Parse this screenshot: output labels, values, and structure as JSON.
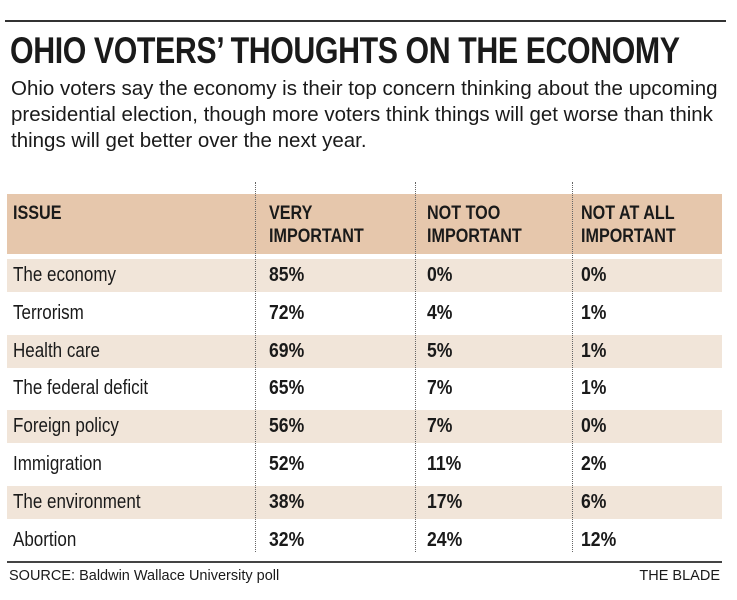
{
  "title": "OHIO VOTERS’ THOUGHTS ON THE ECONOMY",
  "subtitle": "Ohio voters say the economy is their top concern thinking about the upcoming presidential election, though more voters think things will get worse than think things will get better over the next year.",
  "source": "SOURCE: Baldwin Wallace University poll",
  "credit": "THE BLADE",
  "colors": {
    "header_bg": "#e6c7ac",
    "band_bg": "#f1e5d9",
    "text": "#1a1a1a"
  },
  "chart_data": {
    "type": "table",
    "title": "OHIO VOTERS’ THOUGHTS ON THE ECONOMY",
    "columns": [
      "ISSUE",
      "VERY IMPORTANT",
      "NOT TOO IMPORTANT",
      "NOT AT ALL IMPORTANT"
    ],
    "header_lines": [
      [
        "ISSUE",
        ""
      ],
      [
        "VERY",
        "IMPORTANT"
      ],
      [
        "NOT TOO",
        "IMPORTANT"
      ],
      [
        "NOT AT ALL",
        "IMPORTANT"
      ]
    ],
    "rows": [
      {
        "issue": "The economy",
        "very": "85%",
        "not_too": "0%",
        "not_at_all": "0%"
      },
      {
        "issue": "Terrorism",
        "very": "72%",
        "not_too": "4%",
        "not_at_all": "1%"
      },
      {
        "issue": "Health care",
        "very": "69%",
        "not_too": "5%",
        "not_at_all": "1%"
      },
      {
        "issue": "The federal deficit",
        "very": "65%",
        "not_too": "7%",
        "not_at_all": "1%"
      },
      {
        "issue": "Foreign policy",
        "very": "56%",
        "not_too": "7%",
        "not_at_all": "0%"
      },
      {
        "issue": "Immigration",
        "very": "52%",
        "not_too": "11%",
        "not_at_all": "2%"
      },
      {
        "issue": "The environment",
        "very": "38%",
        "not_too": "17%",
        "not_at_all": "6%"
      },
      {
        "issue": "Abortion",
        "very": "32%",
        "not_too": "24%",
        "not_at_all": "12%"
      }
    ]
  }
}
